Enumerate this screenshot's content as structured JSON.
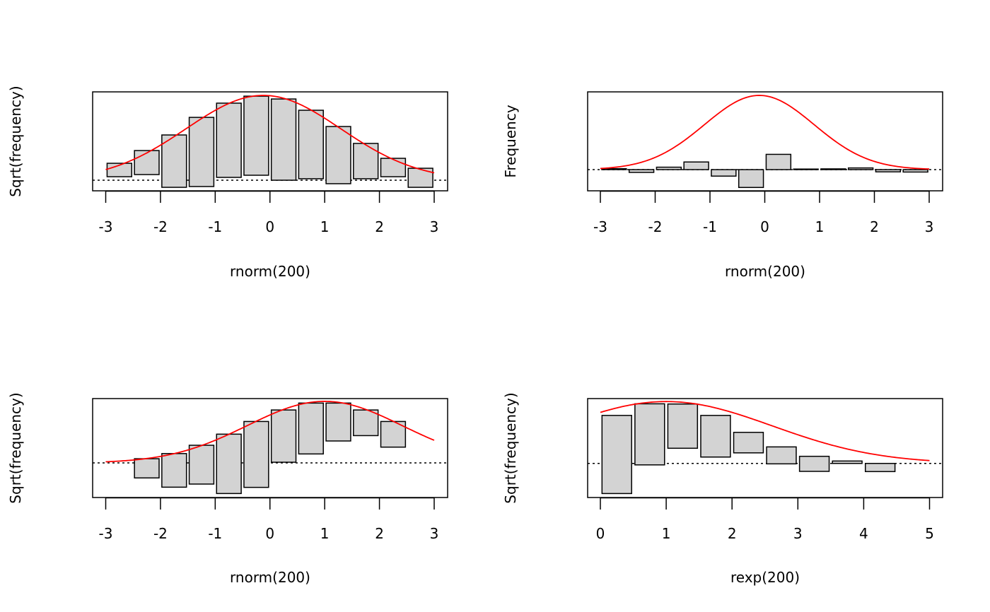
{
  "chart_data": [
    {
      "type": "bar",
      "subtype": "hanging-rootogram",
      "title": "",
      "xlabel": "rnorm(200)",
      "ylabel": "Sqrt(frequency)",
      "xlim": [
        -3,
        3
      ],
      "ylim": [
        -0.79,
        6.58
      ],
      "xticks": [
        -3,
        -2,
        -1,
        0,
        1,
        2,
        3
      ],
      "xtick_labels": [
        "-3",
        "-2",
        "-1",
        "0",
        "1",
        "2",
        "3"
      ],
      "yaxis_shown": false,
      "bins": [
        [
          -3,
          -2.5
        ],
        [
          -2.5,
          -2
        ],
        [
          -2,
          -1.5
        ],
        [
          -1.5,
          -1
        ],
        [
          -1,
          -0.5
        ],
        [
          -0.5,
          0
        ],
        [
          0,
          0.5
        ],
        [
          0.5,
          1
        ],
        [
          1,
          1.5
        ],
        [
          1.5,
          2
        ],
        [
          2,
          2.5
        ],
        [
          2.5,
          3
        ]
      ],
      "bar_top": [
        1.26,
        2.21,
        3.37,
        4.68,
        5.74,
        6.26,
        6.05,
        5.21,
        4.0,
        2.74,
        1.63,
        0.89
      ],
      "bar_bottom": [
        0.26,
        0.42,
        -0.53,
        -0.47,
        0.21,
        0.37,
        0.0,
        0.11,
        -0.26,
        0.11,
        0.26,
        -0.53
      ],
      "reference_line": 0,
      "fit_curve": {
        "distribution": "normal",
        "mean": -0.12,
        "sd": 1.0,
        "n": 200,
        "binwidth": 0.5,
        "scale": "sqrt",
        "x_range": [
          -3,
          3
        ],
        "color": "#ff0000"
      }
    },
    {
      "type": "bar",
      "subtype": "deviation-rootogram",
      "title": "",
      "xlabel": "rnorm(200)",
      "ylabel": "Frequency",
      "xlim": [
        -3,
        3
      ],
      "ylim": [
        -11.4,
        41.8
      ],
      "xticks": [
        -3,
        -2,
        -1,
        0,
        1,
        2,
        3
      ],
      "xtick_labels": [
        "-3",
        "-2",
        "-1",
        "0",
        "1",
        "2",
        "3"
      ],
      "yaxis_shown": false,
      "bins": [
        [
          -3,
          -2.5
        ],
        [
          -2.5,
          -2
        ],
        [
          -2,
          -1.5
        ],
        [
          -1.5,
          -1
        ],
        [
          -1,
          -0.5
        ],
        [
          -0.5,
          0
        ],
        [
          0,
          0.5
        ],
        [
          0.5,
          1
        ],
        [
          1,
          1.5
        ],
        [
          1.5,
          2
        ],
        [
          2,
          2.5
        ],
        [
          2.5,
          3
        ]
      ],
      "bar_top": [
        0.5,
        0,
        1.3,
        4.1,
        0,
        0,
        8.2,
        0.3,
        0.4,
        0.9,
        0,
        0
      ],
      "bar_bottom": [
        0,
        -1.5,
        0,
        0,
        -3.5,
        -9.6,
        0,
        0,
        0,
        0,
        -1.2,
        -1.3
      ],
      "reference_line": 0,
      "fit_curve": {
        "distribution": "normal",
        "mean": -0.1,
        "sd": 1.0,
        "n": 200,
        "binwidth": 0.5,
        "scale": "raw",
        "x_range": [
          -3,
          3
        ],
        "color": "#ff0000"
      }
    },
    {
      "type": "bar",
      "subtype": "hanging-rootogram",
      "title": "",
      "xlabel": "rnorm(200)",
      "ylabel": "Sqrt(frequency)",
      "xlim": [
        -3,
        3
      ],
      "ylim": [
        -3.55,
        6.6
      ],
      "xticks": [
        -3,
        -2,
        -1,
        0,
        1,
        2,
        3
      ],
      "xtick_labels": [
        "-3",
        "-2",
        "-1",
        "0",
        "1",
        "2",
        "3"
      ],
      "yaxis_shown": false,
      "bins": [
        [
          -2.5,
          -2
        ],
        [
          -2,
          -1.5
        ],
        [
          -1.5,
          -1
        ],
        [
          -1,
          -0.5
        ],
        [
          -0.5,
          0
        ],
        [
          0,
          0.5
        ],
        [
          0.5,
          1
        ],
        [
          1,
          1.5
        ],
        [
          1.5,
          2
        ],
        [
          2,
          2.5
        ]
      ],
      "bar_top": [
        0.43,
        0.96,
        1.81,
        2.95,
        4.25,
        5.43,
        6.14,
        6.14,
        5.43,
        4.25
      ],
      "bar_bottom": [
        -1.54,
        -2.49,
        -2.17,
        -3.14,
        -2.51,
        0.07,
        0.92,
        2.25,
        2.8,
        1.62
      ],
      "reference_line": 0,
      "fit_curve": {
        "distribution": "normal",
        "mean": 1.0,
        "sd": 1.0,
        "n": 200,
        "binwidth": 0.5,
        "scale": "sqrt",
        "x_range": [
          -3,
          3
        ],
        "color": "#ff0000"
      }
    },
    {
      "type": "bar",
      "subtype": "hanging-rootogram",
      "title": "",
      "xlabel": "rexp(200)",
      "ylabel": "Sqrt(frequency)",
      "xlim": [
        0,
        5
      ],
      "ylim": [
        -3.26,
        6.2
      ],
      "xticks": [
        0,
        1,
        2,
        3,
        4,
        5
      ],
      "xtick_labels": [
        "0",
        "1",
        "2",
        "3",
        "4",
        "5"
      ],
      "yaxis_shown": false,
      "bins": [
        [
          0,
          0.5
        ],
        [
          0.5,
          1
        ],
        [
          1,
          1.5
        ],
        [
          1.5,
          2
        ],
        [
          2,
          2.5
        ],
        [
          2.5,
          3
        ],
        [
          3,
          3.5
        ],
        [
          3.5,
          4
        ],
        [
          4,
          4.5
        ]
      ],
      "bar_top": [
        4.59,
        5.7,
        5.68,
        4.59,
        2.97,
        1.58,
        0.68,
        0.23,
        0.0
      ],
      "bar_bottom": [
        -2.88,
        -0.14,
        1.45,
        0.61,
        1.01,
        -0.04,
        -0.76,
        0.0,
        -0.78
      ],
      "reference_line": 0,
      "fit_curve": {
        "distribution": "normal",
        "mean": 1.0,
        "sd": 1.14,
        "n": 200,
        "binwidth": 0.5,
        "scale": "sqrt",
        "x_range": [
          0,
          5
        ],
        "color": "#ff0000"
      }
    }
  ],
  "style": {
    "bar_fill": "#d3d3d3",
    "bar_stroke": "#000000",
    "curve_color": "#ff0000",
    "reference_line_color": "#000000"
  }
}
